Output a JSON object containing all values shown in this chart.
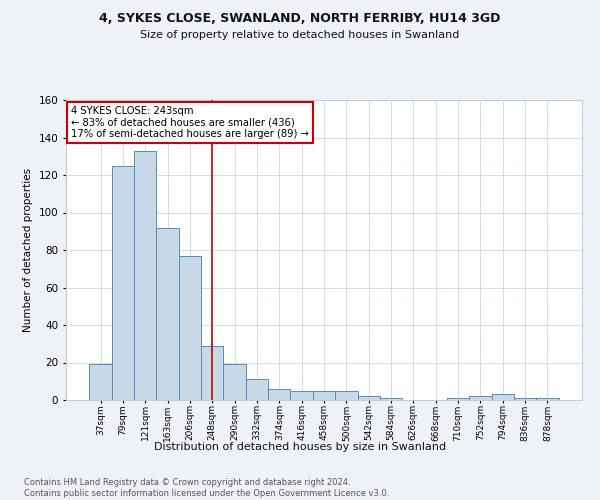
{
  "title1": "4, SYKES CLOSE, SWANLAND, NORTH FERRIBY, HU14 3GD",
  "title2": "Size of property relative to detached houses in Swanland",
  "xlabel": "Distribution of detached houses by size in Swanland",
  "ylabel": "Number of detached properties",
  "categories": [
    "37sqm",
    "79sqm",
    "121sqm",
    "163sqm",
    "206sqm",
    "248sqm",
    "290sqm",
    "332sqm",
    "374sqm",
    "416sqm",
    "458sqm",
    "500sqm",
    "542sqm",
    "584sqm",
    "626sqm",
    "668sqm",
    "710sqm",
    "752sqm",
    "794sqm",
    "836sqm",
    "878sqm"
  ],
  "values": [
    19,
    125,
    133,
    92,
    77,
    29,
    19,
    11,
    6,
    5,
    5,
    5,
    2,
    1,
    0,
    0,
    1,
    2,
    3,
    1,
    1
  ],
  "bar_color": "#c8d9e8",
  "bar_edge_color": "#5b8db8",
  "vline_x_index": 5,
  "vline_color": "#cc0000",
  "annotation_text": "4 SYKES CLOSE: 243sqm\n← 83% of detached houses are smaller (436)\n17% of semi-detached houses are larger (89) →",
  "annotation_box_color": "#ffffff",
  "annotation_box_edge": "#cc0000",
  "ylim": [
    0,
    160
  ],
  "yticks": [
    0,
    20,
    40,
    60,
    80,
    100,
    120,
    140,
    160
  ],
  "footer": "Contains HM Land Registry data © Crown copyright and database right 2024.\nContains public sector information licensed under the Open Government Licence v3.0.",
  "bg_color": "#eef2f7",
  "plot_bg_color": "#ffffff",
  "grid_color": "#c0ccd8"
}
